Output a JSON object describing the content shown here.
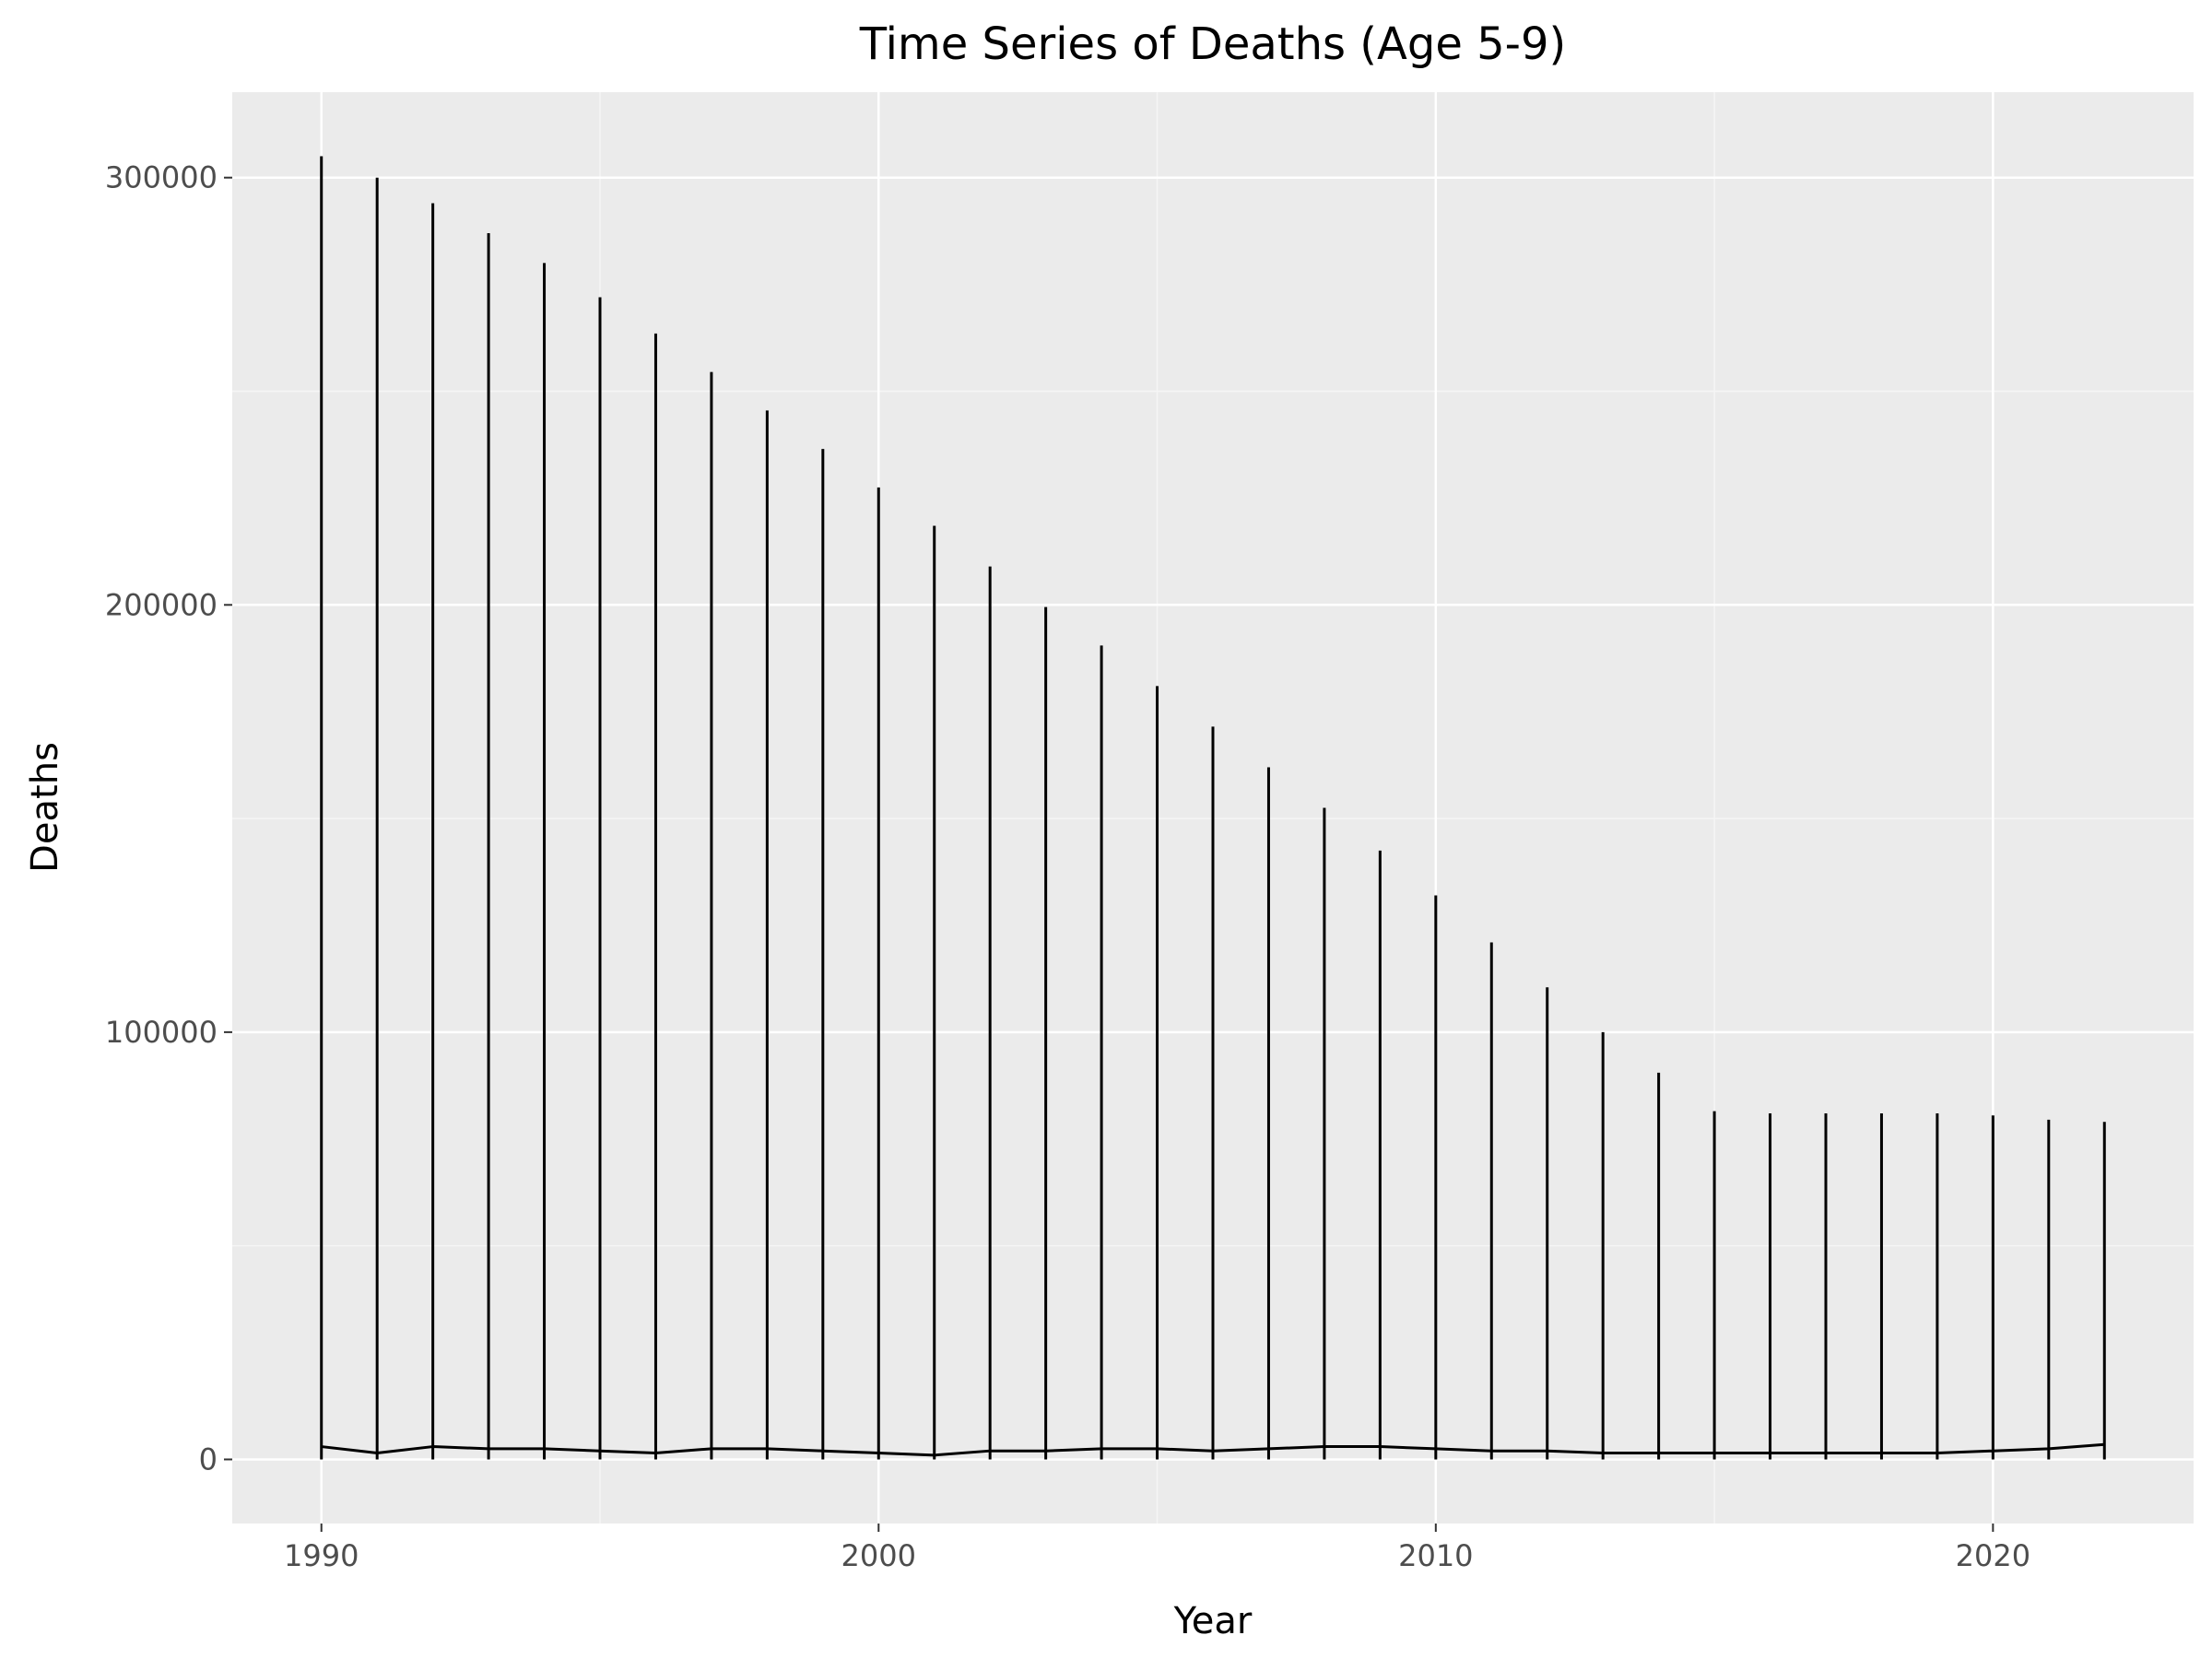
{
  "chart_data": {
    "type": "line",
    "title": "Time Series of Deaths (Age 5-9)",
    "xlabel": "Year",
    "ylabel": "Deaths",
    "xlim": [
      1988.4,
      2023.6
    ],
    "ylim": [
      -15000,
      320000
    ],
    "x_ticks": [
      1990,
      2000,
      2010,
      2020
    ],
    "y_ticks": [
      0,
      100000,
      200000,
      300000
    ],
    "grid": true,
    "legend": "none",
    "x": [
      1990,
      1991,
      1992,
      1993,
      1994,
      1995,
      1996,
      1997,
      1998,
      1999,
      2000,
      2001,
      2002,
      2003,
      2004,
      2005,
      2006,
      2007,
      2008,
      2009,
      2010,
      2011,
      2012,
      2013,
      2014,
      2015,
      2016,
      2017,
      2018,
      2019,
      2020,
      2021,
      2022
    ],
    "series": [
      {
        "values": [
          305000,
          300000,
          294000,
          287000,
          280000,
          272000,
          263500,
          254500,
          245500,
          236500,
          227500,
          218500,
          209000,
          199500,
          190500,
          181000,
          171500,
          162000,
          152500,
          142500,
          132000,
          121000,
          110500,
          100000,
          90500,
          81500,
          81000,
          81000,
          81000,
          81000,
          80500,
          79500,
          79000
        ],
        "lows": [
          0,
          0,
          0,
          0,
          0,
          0,
          0,
          0,
          0,
          0,
          0,
          0,
          0,
          0,
          0,
          0,
          0,
          0,
          0,
          0,
          0,
          0,
          0,
          0,
          0,
          0,
          0,
          0,
          0,
          0,
          0,
          0,
          0
        ],
        "bottom_line": [
          3000,
          1500,
          3000,
          2500,
          2500,
          2000,
          1500,
          2500,
          2500,
          2000,
          1500,
          1000,
          2000,
          2000,
          2500,
          2500,
          2000,
          2500,
          3000,
          3000,
          2500,
          2000,
          2000,
          1500,
          1500,
          1500,
          1500,
          1500,
          1500,
          1500,
          2000,
          2500,
          3500
        ]
      }
    ],
    "colors": {
      "panel": "#ebebeb",
      "grid_major": "#ffffff",
      "grid_minor": "#f5f5f5",
      "line": "#000000",
      "tick_label": "#4d4d4d",
      "text": "#000000"
    }
  }
}
